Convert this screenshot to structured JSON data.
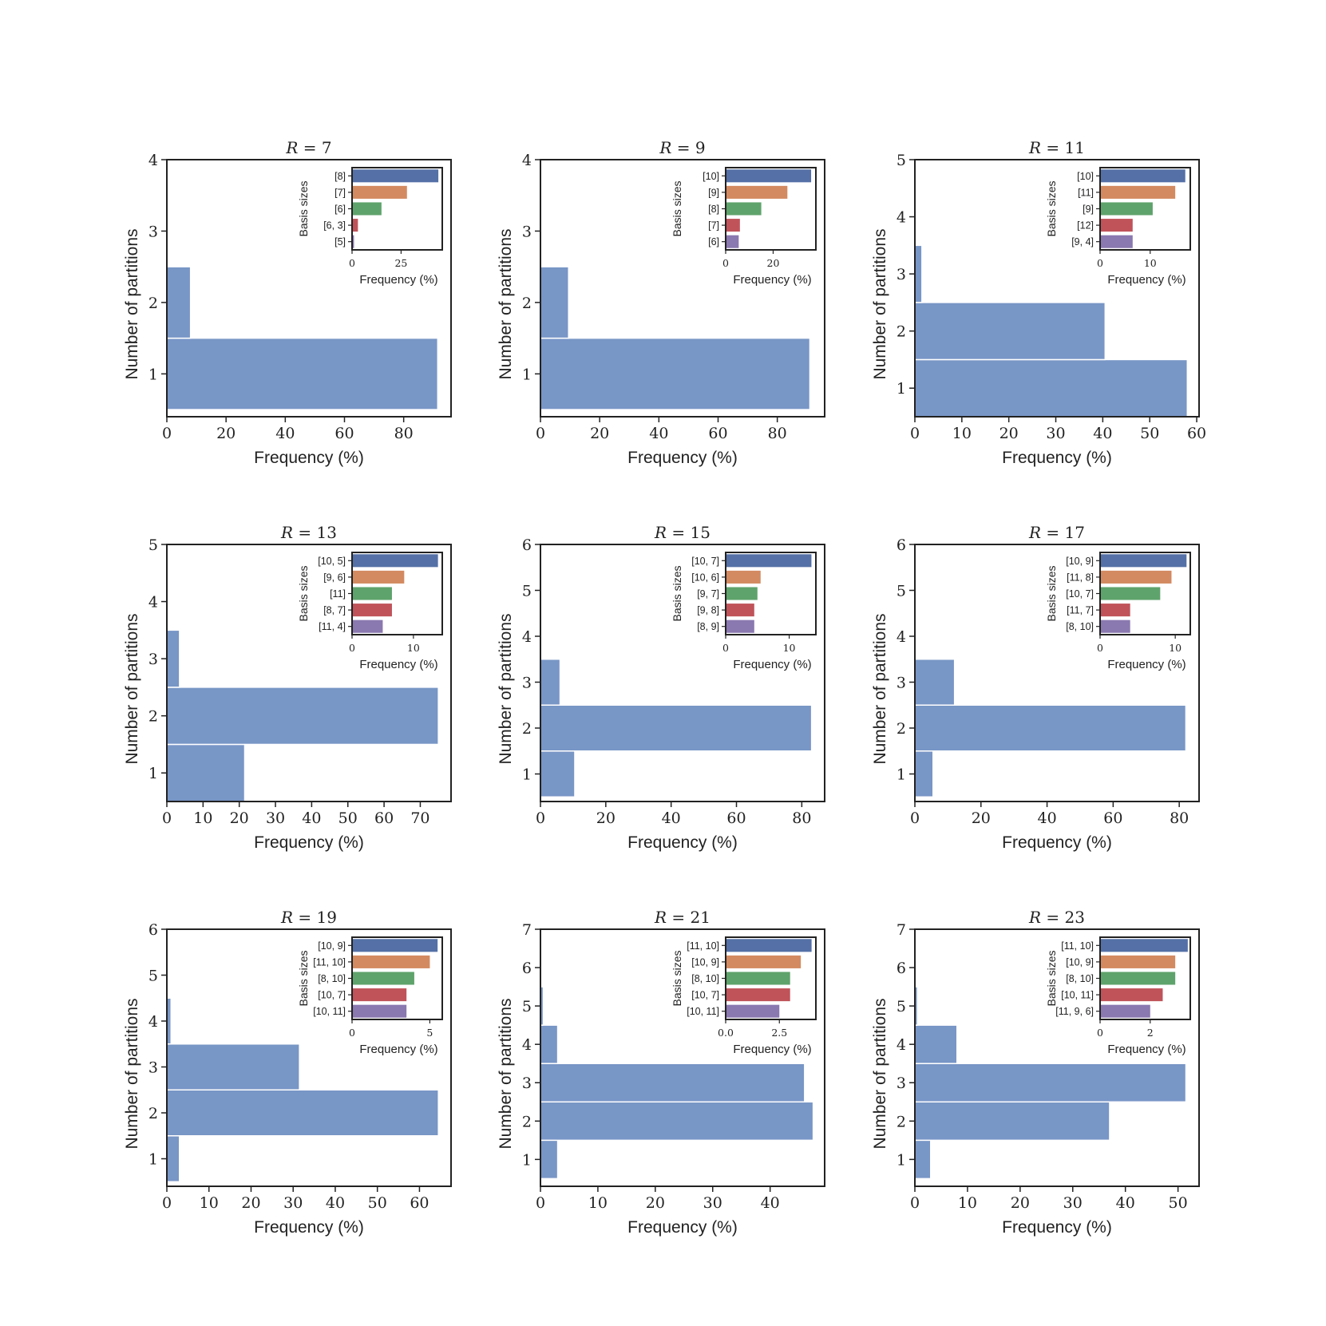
{
  "figure": {
    "main_xlabel": "Frequency (%)",
    "main_ylabel": "Number of partitions",
    "inset_xlabel": "Frequency (%)",
    "inset_ylabel": "Basis sizes"
  },
  "colors": {
    "main_bar": "#7896c6",
    "inset_series": [
      "#5470a6",
      "#d38a60",
      "#5ea36b",
      "#c0535a",
      "#8a78b0"
    ]
  },
  "chart_data": [
    {
      "type": "bar",
      "orientation": "horizontal",
      "title": "R = 7",
      "xlabel": "Frequency (%)",
      "ylabel": "Number of partitions",
      "xlim": [
        0,
        96
      ],
      "ylim": [
        0.4,
        4
      ],
      "xticks": [
        0,
        20,
        40,
        60,
        80
      ],
      "yticks": [
        1,
        2,
        3,
        4
      ],
      "bars": [
        {
          "y": 1,
          "value": 91.5
        },
        {
          "y": 2,
          "value": 8
        }
      ],
      "inset": {
        "type": "bar",
        "orientation": "horizontal",
        "categories": [
          "[8]",
          "[7]",
          "[6]",
          "[6, 3]",
          "[5]"
        ],
        "values": [
          44,
          28,
          15,
          3,
          1
        ],
        "xlim": [
          0,
          46
        ],
        "xticks": [
          0,
          25
        ],
        "xlabel": "Frequency (%)",
        "ylabel": "Basis sizes"
      }
    },
    {
      "type": "bar",
      "orientation": "horizontal",
      "title": "R = 9",
      "xlabel": "Frequency (%)",
      "ylabel": "Number of partitions",
      "xlim": [
        0,
        96
      ],
      "ylim": [
        0.4,
        4
      ],
      "xticks": [
        0,
        20,
        40,
        60,
        80
      ],
      "yticks": [
        1,
        2,
        3,
        4
      ],
      "bars": [
        {
          "y": 1,
          "value": 91
        },
        {
          "y": 2,
          "value": 9.5
        }
      ],
      "inset": {
        "type": "bar",
        "orientation": "horizontal",
        "categories": [
          "[10]",
          "[9]",
          "[8]",
          "[7]",
          "[6]"
        ],
        "values": [
          36,
          26,
          15,
          6,
          5.5
        ],
        "xlim": [
          0,
          38
        ],
        "xticks": [
          0,
          20
        ],
        "xlabel": "Frequency (%)",
        "ylabel": "Basis sizes"
      }
    },
    {
      "type": "bar",
      "orientation": "horizontal",
      "title": "R = 11",
      "xlabel": "Frequency (%)",
      "ylabel": "Number of partitions",
      "xlim": [
        0,
        60.5
      ],
      "ylim": [
        0.5,
        5
      ],
      "xticks": [
        0,
        10,
        20,
        30,
        40,
        50,
        60
      ],
      "yticks": [
        1,
        2,
        3,
        4,
        5
      ],
      "bars": [
        {
          "y": 1,
          "value": 58
        },
        {
          "y": 2,
          "value": 40.5
        },
        {
          "y": 3,
          "value": 1.5
        }
      ],
      "inset": {
        "type": "bar",
        "orientation": "horizontal",
        "categories": [
          "[10]",
          "[11]",
          "[9]",
          "[12]",
          "[9, 4]"
        ],
        "values": [
          17,
          15,
          10.5,
          6.5,
          6.5
        ],
        "xlim": [
          0,
          18
        ],
        "xticks": [
          0,
          10
        ],
        "xlabel": "Frequency (%)",
        "ylabel": "Basis sizes"
      }
    },
    {
      "type": "bar",
      "orientation": "horizontal",
      "title": "R = 13",
      "xlabel": "Frequency (%)",
      "ylabel": "Number of partitions",
      "xlim": [
        0,
        78.5
      ],
      "ylim": [
        0.5,
        5
      ],
      "xticks": [
        0,
        10,
        20,
        30,
        40,
        50,
        60,
        70
      ],
      "yticks": [
        1,
        2,
        3,
        4,
        5
      ],
      "bars": [
        {
          "y": 1,
          "value": 21.5
        },
        {
          "y": 2,
          "value": 75
        },
        {
          "y": 3,
          "value": 3.5
        }
      ],
      "inset": {
        "type": "bar",
        "orientation": "horizontal",
        "categories": [
          "[10, 5]",
          "[9, 6]",
          "[11]",
          "[8, 7]",
          "[11, 4]"
        ],
        "values": [
          14,
          8.5,
          6.5,
          6.5,
          5
        ],
        "xlim": [
          0,
          14.7
        ],
        "xticks": [
          0,
          10
        ],
        "xlabel": "Frequency (%)",
        "ylabel": "Basis sizes"
      }
    },
    {
      "type": "bar",
      "orientation": "horizontal",
      "title": "R = 15",
      "xlabel": "Frequency (%)",
      "ylabel": "Number of partitions",
      "xlim": [
        0,
        87
      ],
      "ylim": [
        0.4,
        6
      ],
      "xticks": [
        0,
        20,
        40,
        60,
        80
      ],
      "yticks": [
        1,
        2,
        3,
        4,
        5,
        6
      ],
      "bars": [
        {
          "y": 1,
          "value": 10.5
        },
        {
          "y": 2,
          "value": 83
        },
        {
          "y": 3,
          "value": 6
        }
      ],
      "inset": {
        "type": "bar",
        "orientation": "horizontal",
        "categories": [
          "[10, 7]",
          "[10, 6]",
          "[9, 7]",
          "[9, 8]",
          "[8, 9]"
        ],
        "values": [
          13.5,
          5.5,
          5,
          4.5,
          4.5
        ],
        "xlim": [
          0,
          14.2
        ],
        "xticks": [
          0,
          10
        ],
        "xlabel": "Frequency (%)",
        "ylabel": "Basis sizes"
      }
    },
    {
      "type": "bar",
      "orientation": "horizontal",
      "title": "R = 17",
      "xlabel": "Frequency (%)",
      "ylabel": "Number of partitions",
      "xlim": [
        0,
        86
      ],
      "ylim": [
        0.4,
        6
      ],
      "xticks": [
        0,
        20,
        40,
        60,
        80
      ],
      "yticks": [
        1,
        2,
        3,
        4,
        5,
        6
      ],
      "bars": [
        {
          "y": 1,
          "value": 5.5
        },
        {
          "y": 2,
          "value": 82
        },
        {
          "y": 3,
          "value": 12
        }
      ],
      "inset": {
        "type": "bar",
        "orientation": "horizontal",
        "categories": [
          "[10, 9]",
          "[11, 8]",
          "[10, 7]",
          "[11, 7]",
          "[8, 10]"
        ],
        "values": [
          11.5,
          9.5,
          8,
          4,
          4
        ],
        "xlim": [
          0,
          12
        ],
        "xticks": [
          0,
          10
        ],
        "xlabel": "Frequency (%)",
        "ylabel": "Basis sizes"
      }
    },
    {
      "type": "bar",
      "orientation": "horizontal",
      "title": "R = 19",
      "xlabel": "Frequency (%)",
      "ylabel": "Number of partitions",
      "xlim": [
        0,
        67.5
      ],
      "ylim": [
        0.4,
        6
      ],
      "xticks": [
        0,
        10,
        20,
        30,
        40,
        50,
        60
      ],
      "yticks": [
        1,
        2,
        3,
        4,
        5,
        6
      ],
      "bars": [
        {
          "y": 1,
          "value": 3
        },
        {
          "y": 2,
          "value": 64.5
        },
        {
          "y": 3,
          "value": 31.5
        },
        {
          "y": 4,
          "value": 1
        }
      ],
      "inset": {
        "type": "bar",
        "orientation": "horizontal",
        "categories": [
          "[10, 9]",
          "[11, 10]",
          "[8, 10]",
          "[10, 7]",
          "[10, 11]"
        ],
        "values": [
          5.5,
          5,
          4,
          3.5,
          3.5
        ],
        "xlim": [
          0,
          5.8
        ],
        "xticks": [
          0,
          5
        ],
        "xlabel": "Frequency (%)",
        "ylabel": "Basis sizes"
      }
    },
    {
      "type": "bar",
      "orientation": "horizontal",
      "title": "R = 21",
      "xlabel": "Frequency (%)",
      "ylabel": "Number of partitions",
      "xlim": [
        0,
        49.5
      ],
      "ylim": [
        0.3,
        7
      ],
      "xticks": [
        0,
        10,
        20,
        30,
        40
      ],
      "yticks": [
        1,
        2,
        3,
        4,
        5,
        6,
        7
      ],
      "bars": [
        {
          "y": 1,
          "value": 3
        },
        {
          "y": 2,
          "value": 47.5
        },
        {
          "y": 3,
          "value": 46
        },
        {
          "y": 4,
          "value": 3
        },
        {
          "y": 5,
          "value": 0.5
        }
      ],
      "inset": {
        "type": "bar",
        "orientation": "horizontal",
        "categories": [
          "[11, 10]",
          "[10, 9]",
          "[8, 10]",
          "[10, 7]",
          "[10, 11]"
        ],
        "values": [
          4,
          3.5,
          3,
          3,
          2.5
        ],
        "xlim": [
          0,
          4.2
        ],
        "xticks": [
          0.0,
          2.5
        ],
        "xticklabels": [
          "0.0",
          "2.5"
        ],
        "xlabel": "Frequency (%)",
        "ylabel": "Basis sizes"
      }
    },
    {
      "type": "bar",
      "orientation": "horizontal",
      "title": "R = 23",
      "xlabel": "Frequency (%)",
      "ylabel": "Number of partitions",
      "xlim": [
        0,
        54
      ],
      "ylim": [
        0.3,
        7
      ],
      "xticks": [
        0,
        10,
        20,
        30,
        40,
        50
      ],
      "yticks": [
        1,
        2,
        3,
        4,
        5,
        6,
        7
      ],
      "bars": [
        {
          "y": 1,
          "value": 3
        },
        {
          "y": 2,
          "value": 37
        },
        {
          "y": 3,
          "value": 51.5
        },
        {
          "y": 4,
          "value": 8
        },
        {
          "y": 5,
          "value": 0.5
        }
      ],
      "inset": {
        "type": "bar",
        "orientation": "horizontal",
        "categories": [
          "[11, 10]",
          "[10, 9]",
          "[8, 10]",
          "[10, 11]",
          "[11, 9, 6]"
        ],
        "values": [
          3.5,
          3,
          3,
          2.5,
          2
        ],
        "xlim": [
          0,
          3.6
        ],
        "xticks": [
          0,
          2
        ],
        "xlabel": "Frequency (%)",
        "ylabel": "Basis sizes"
      }
    }
  ]
}
